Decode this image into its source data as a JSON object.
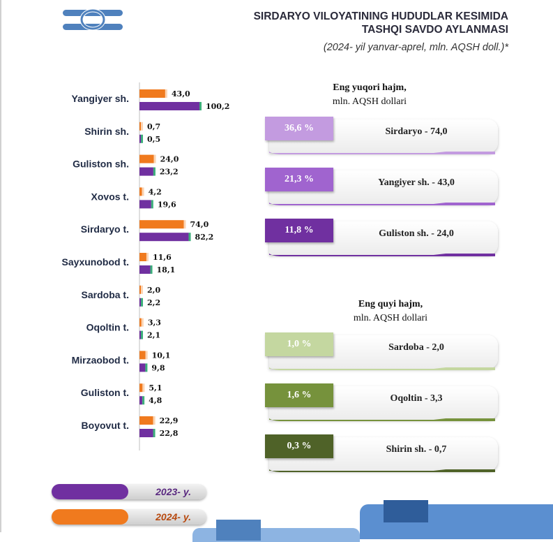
{
  "header": {
    "title_line1": "SIRDARYO VILOYATINING HUDUDLAR KESIMIDA",
    "title_line2": "TASHQI SAVDO AYLANMASI",
    "subtitle": "(2024- yil yanvar-aprel, mln. AQSH doll.)*"
  },
  "colors": {
    "y2024": "#f07a1e",
    "y2023": "#7030a0",
    "logo": "#4f81bd"
  },
  "chart_data": {
    "type": "bar",
    "orientation": "horizontal",
    "categories": [
      "Yangiyer sh.",
      "Shirin sh.",
      "Guliston sh.",
      "Xovos t.",
      "Sirdaryo t.",
      "Sayxunobod t.",
      "Sardoba t.",
      "Oqoltin t.",
      "Mirzaobod t.",
      "Guliston t.",
      "Boyovut t."
    ],
    "series": [
      {
        "name": "2024- y.",
        "values": [
          43.0,
          0.7,
          24.0,
          4.2,
          74.0,
          11.6,
          2.0,
          3.3,
          10.1,
          5.1,
          22.9
        ],
        "labels": [
          "43,0",
          "0,7",
          "24,0",
          "4,2",
          "74,0",
          "11,6",
          "2,0",
          "3,3",
          "10,1",
          "5,1",
          "22,9"
        ]
      },
      {
        "name": "2023- y.",
        "values": [
          100.2,
          0.5,
          23.2,
          19.6,
          82.2,
          18.1,
          2.2,
          2.1,
          9.8,
          4.8,
          22.8
        ],
        "labels": [
          "100,2",
          "0,5",
          "23,2",
          "19,6",
          "82,2",
          "18,1",
          "2,2",
          "2,1",
          "9,8",
          "4,8",
          "22,8"
        ]
      }
    ],
    "xlim": [
      0,
      100.2
    ],
    "grid": false,
    "legend": "bottom-left"
  },
  "top_panel": {
    "heading_line1": "Eng yuqori hajm,",
    "heading_line2": "mln. AQSH dollari",
    "cards": [
      {
        "percent": "36,6 %",
        "label": "Sirdaryo - 74,0",
        "color": "#c39be0"
      },
      {
        "percent": "21,3 %",
        "label": "Yangiyer sh. - 43,0",
        "color": "#a064cf"
      },
      {
        "percent": "11,8 %",
        "label": "Guliston sh.  - 24,0",
        "color": "#7030a0"
      }
    ]
  },
  "bottom_panel": {
    "heading_line1": "Eng quyi hajm,",
    "heading_line2": "mln. AQSH dollari",
    "cards": [
      {
        "percent": "1,0 %",
        "label": "Sardoba -  2,0",
        "color": "#c4d7a0"
      },
      {
        "percent": "1,6 %",
        "label": "Oqoltin - 3,3",
        "color": "#76923c"
      },
      {
        "percent": "0,3 %",
        "label": "Shirin sh. - 0,7",
        "color": "#4f6228"
      }
    ]
  },
  "legend": {
    "y2023_label": "2023- y.",
    "y2024_label": "2024- y."
  }
}
